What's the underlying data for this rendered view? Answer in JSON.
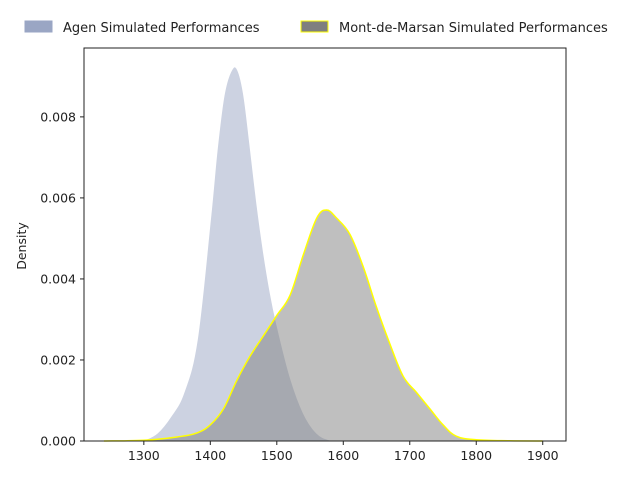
{
  "chart_data": {
    "type": "area",
    "title": "",
    "xlabel": "",
    "ylabel": "Density",
    "xlim": [
      1210,
      1935
    ],
    "ylim": [
      0,
      0.0097
    ],
    "x_ticks": [
      1300,
      1400,
      1500,
      1600,
      1700,
      1800,
      1900
    ],
    "y_ticks": [
      0.0,
      0.002,
      0.004,
      0.006,
      0.008
    ],
    "y_tick_labels": [
      "0.000",
      "0.002",
      "0.004",
      "0.006",
      "0.008"
    ],
    "grid": false,
    "legend_position": "top",
    "colors": {
      "agen_fill": "#9aa6c4",
      "agen_stroke": "#ffffff",
      "mdm_fill": "#7f7f7f",
      "mdm_stroke": "#ffff00",
      "axis": "#222222"
    },
    "series": [
      {
        "name": "Agen Simulated Performances",
        "x": [
          1300,
          1320,
          1340,
          1360,
          1380,
          1400,
          1410,
          1420,
          1430,
          1440,
          1450,
          1460,
          1470,
          1480,
          1490,
          1500,
          1520,
          1540,
          1560,
          1580,
          1600
        ],
        "y": [
          2e-05,
          0.0002,
          0.0006,
          0.0012,
          0.0025,
          0.0055,
          0.0072,
          0.0085,
          0.0091,
          0.0092,
          0.0086,
          0.0073,
          0.0059,
          0.0047,
          0.0037,
          0.0029,
          0.0016,
          0.0007,
          0.0002,
          3e-05,
          0.0
        ]
      },
      {
        "name": "Mont-de-Marsan Simulated Performances",
        "x": [
          1240,
          1300,
          1350,
          1380,
          1400,
          1420,
          1440,
          1460,
          1480,
          1500,
          1520,
          1540,
          1560,
          1575,
          1590,
          1610,
          1630,
          1650,
          1670,
          1690,
          1710,
          1730,
          1750,
          1770,
          1800,
          1850,
          1900
        ],
        "y": [
          0.0,
          2e-05,
          0.0001,
          0.0002,
          0.0004,
          0.0008,
          0.0015,
          0.0021,
          0.0026,
          0.0031,
          0.0036,
          0.0046,
          0.0055,
          0.0057,
          0.0055,
          0.0051,
          0.0043,
          0.0033,
          0.0024,
          0.0016,
          0.0012,
          0.0008,
          0.0004,
          0.00012,
          3e-05,
          5e-06,
          0.0
        ]
      }
    ]
  }
}
